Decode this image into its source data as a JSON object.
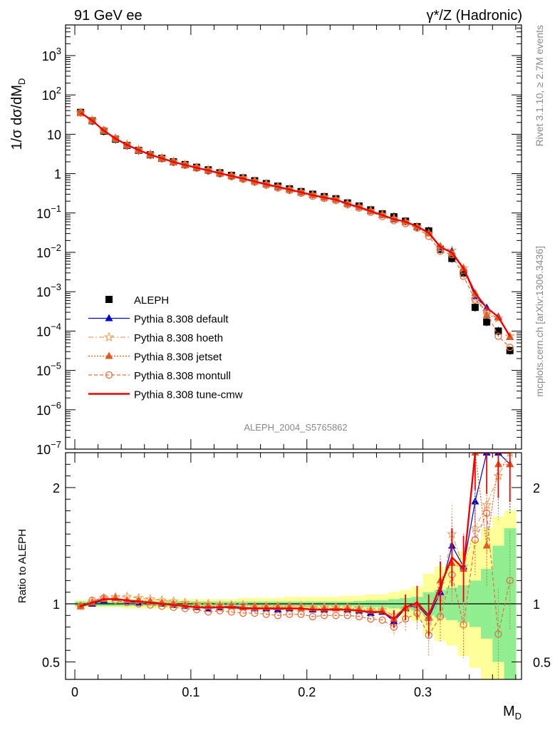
{
  "header": {
    "left": "91 GeV ee",
    "right": "γ*/Z (Hadronic)"
  },
  "side_labels": {
    "rivet": "Rivet 3.1.10, ≥ 2.7M events",
    "mcplots": "mcplots.cern.ch [arXiv:1306.3436]"
  },
  "analysis_id": "ALEPH_2004_S5765862",
  "colors": {
    "data": "#000000",
    "default": "#0000cc",
    "hoeth": "#e8a060",
    "jetset": "#e05a20",
    "montull": "#e07040",
    "cmw": "#ee0000",
    "band_inner": "#90ee90",
    "band_outer": "#ffff99"
  },
  "chart_data": [
    {
      "type": "scatter",
      "panel": "main",
      "ylabel": "1/σ  dσ/dM",
      "ylabel_sub": "D",
      "yscale": "log",
      "ylim": [
        1e-07,
        6000
      ],
      "xlim": [
        -0.008,
        0.385
      ],
      "yticks": [
        {
          "v": 1000,
          "b": "10",
          "e": "3"
        },
        {
          "v": 100,
          "b": "10",
          "e": "2"
        },
        {
          "v": 10,
          "b": "10",
          "e": ""
        },
        {
          "v": 1,
          "b": "1",
          "e": ""
        },
        {
          "v": 0.1,
          "b": "10",
          "e": "−1"
        },
        {
          "v": 0.01,
          "b": "10",
          "e": "−2"
        },
        {
          "v": 0.001,
          "b": "10",
          "e": "−3"
        },
        {
          "v": 0.0001,
          "b": "10",
          "e": "−4"
        },
        {
          "v": 1e-05,
          "b": "10",
          "e": "−5"
        },
        {
          "v": 1e-06,
          "b": "10",
          "e": "−6"
        },
        {
          "v": 1e-07,
          "b": "10",
          "e": "−7"
        }
      ],
      "x": [
        0.005,
        0.015,
        0.025,
        0.035,
        0.045,
        0.055,
        0.065,
        0.075,
        0.085,
        0.095,
        0.105,
        0.115,
        0.125,
        0.135,
        0.145,
        0.155,
        0.165,
        0.175,
        0.185,
        0.195,
        0.205,
        0.215,
        0.225,
        0.235,
        0.245,
        0.255,
        0.265,
        0.275,
        0.285,
        0.295,
        0.305,
        0.315,
        0.325,
        0.335,
        0.345,
        0.355,
        0.365,
        0.375
      ],
      "data_values": [
        36,
        22,
        12,
        7.5,
        5.2,
        3.9,
        3.0,
        2.45,
        2.0,
        1.7,
        1.45,
        1.25,
        1.05,
        0.9,
        0.78,
        0.66,
        0.56,
        0.48,
        0.41,
        0.35,
        0.3,
        0.26,
        0.23,
        0.18,
        0.15,
        0.12,
        0.095,
        0.08,
        0.062,
        0.045,
        0.035,
        0.012,
        0.007,
        0.003,
        0.0004,
        0.00017,
        0.0001,
        3.2e-05
      ],
      "legend_position": "bottom-left",
      "legend": [
        {
          "label": "ALEPH",
          "key": "data"
        },
        {
          "label": "Pythia 8.308 default",
          "key": "default"
        },
        {
          "label": "Pythia 8.308 hoeth",
          "key": "hoeth"
        },
        {
          "label": "Pythia 8.308 jetset",
          "key": "jetset"
        },
        {
          "label": "Pythia 8.308 montull",
          "key": "montull"
        },
        {
          "label": "Pythia 8.308 tune-cmw",
          "key": "cmw"
        }
      ]
    },
    {
      "type": "line",
      "panel": "ratio",
      "ylabel": "Ratio to ALEPH",
      "ylim": [
        0.35,
        2.3
      ],
      "yticks": [
        0.5,
        1,
        2
      ],
      "xlabel": "M",
      "xlabel_sub": "D",
      "xticks": [
        0,
        0.1,
        0.2,
        0.3
      ],
      "x": [
        0.005,
        0.015,
        0.025,
        0.035,
        0.045,
        0.055,
        0.065,
        0.075,
        0.085,
        0.095,
        0.105,
        0.115,
        0.125,
        0.135,
        0.145,
        0.155,
        0.165,
        0.175,
        0.185,
        0.195,
        0.205,
        0.215,
        0.225,
        0.235,
        0.245,
        0.255,
        0.265,
        0.275,
        0.285,
        0.295,
        0.305,
        0.315,
        0.325,
        0.335,
        0.345,
        0.355,
        0.365,
        0.375
      ],
      "band_inner": [
        0.02,
        0.02,
        0.02,
        0.02,
        0.02,
        0.02,
        0.02,
        0.02,
        0.02,
        0.02,
        0.02,
        0.02,
        0.02,
        0.02,
        0.02,
        0.02,
        0.02,
        0.02,
        0.02,
        0.02,
        0.02,
        0.02,
        0.02,
        0.02,
        0.025,
        0.03,
        0.03,
        0.04,
        0.05,
        0.06,
        0.1,
        0.12,
        0.14,
        0.16,
        0.2,
        0.3,
        0.5,
        0.65
      ],
      "band_outer": [
        0.03,
        0.03,
        0.03,
        0.03,
        0.04,
        0.04,
        0.04,
        0.04,
        0.04,
        0.04,
        0.04,
        0.04,
        0.04,
        0.04,
        0.05,
        0.05,
        0.05,
        0.05,
        0.06,
        0.06,
        0.06,
        0.06,
        0.06,
        0.07,
        0.07,
        0.08,
        0.08,
        0.1,
        0.12,
        0.15,
        0.26,
        0.32,
        0.36,
        0.45,
        0.55,
        0.65,
        0.75,
        0.8
      ],
      "series": [
        {
          "key": "default",
          "values": [
            0.98,
            1.0,
            1.03,
            1.05,
            1.02,
            1.01,
            1.02,
            1.0,
            0.99,
            0.98,
            0.97,
            0.96,
            0.97,
            0.98,
            0.97,
            0.96,
            0.96,
            0.95,
            0.96,
            0.96,
            0.95,
            0.95,
            0.96,
            0.95,
            0.94,
            0.92,
            0.93,
            0.85,
            0.96,
            0.99,
            0.88,
            1.1,
            1.5,
            1.32,
            1.88,
            2.3,
            2.3,
            2.2
          ]
        },
        {
          "key": "hoeth",
          "values": [
            0.98,
            1.02,
            1.05,
            1.06,
            1.06,
            1.05,
            1.04,
            1.03,
            1.02,
            1.01,
            1.0,
            1.0,
            0.99,
            0.99,
            0.99,
            0.98,
            0.98,
            0.98,
            0.98,
            0.98,
            0.97,
            0.97,
            0.97,
            0.97,
            0.96,
            0.95,
            0.95,
            0.9,
            0.96,
            0.98,
            0.85,
            1.05,
            1.6,
            1.32,
            1.65,
            1.85,
            2.1,
            2.3
          ]
        },
        {
          "key": "jetset",
          "values": [
            0.98,
            1.01,
            1.04,
            1.05,
            1.03,
            1.03,
            1.02,
            1.01,
            1.0,
            0.99,
            0.98,
            0.98,
            0.98,
            0.98,
            0.97,
            0.97,
            0.97,
            0.97,
            0.97,
            0.96,
            0.96,
            0.96,
            0.96,
            0.96,
            0.95,
            0.94,
            0.94,
            0.87,
            0.97,
            1.0,
            0.89,
            1.2,
            1.35,
            1.3,
            2.3,
            1.5,
            2.2,
            2.2
          ]
        },
        {
          "key": "montull",
          "values": [
            0.98,
            1.03,
            1.05,
            1.03,
            1.01,
            1.0,
            0.99,
            0.98,
            0.97,
            0.96,
            0.95,
            0.93,
            0.94,
            0.93,
            0.92,
            0.92,
            0.91,
            0.9,
            0.91,
            0.91,
            0.89,
            0.9,
            0.9,
            0.9,
            0.89,
            0.87,
            0.86,
            0.8,
            0.87,
            0.92,
            0.73,
            0.89,
            1.25,
            0.82,
            1.55,
            1.78,
            0.74,
            1.2
          ]
        },
        {
          "key": "cmw",
          "values": [
            0.98,
            1.01,
            1.04,
            1.04,
            1.03,
            1.02,
            1.01,
            1.0,
            0.99,
            0.98,
            0.97,
            0.97,
            0.97,
            0.97,
            0.96,
            0.96,
            0.96,
            0.96,
            0.96,
            0.96,
            0.95,
            0.95,
            0.95,
            0.95,
            0.94,
            0.93,
            0.93,
            0.87,
            0.97,
            1.01,
            0.9,
            1.15,
            1.4,
            1.3,
            2.3,
            2.3,
            2.3,
            2.3
          ]
        }
      ]
    }
  ]
}
